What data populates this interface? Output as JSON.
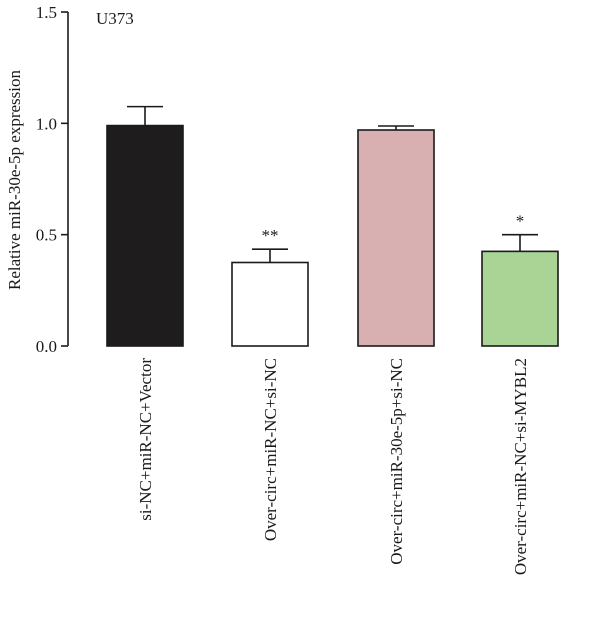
{
  "chart_data": {
    "type": "bar",
    "panel_label": "U373",
    "title": "",
    "xlabel": "",
    "ylabel": "Relative miR-30e-5p expression",
    "ylim": [
      0,
      1.5
    ],
    "yticks": [
      "0.0",
      "0.5",
      "1.0",
      "1.5"
    ],
    "grid": false,
    "categories": [
      "si-NC+miR-NC+Vector",
      "Over-circ+miR-NC+si-NC",
      "Over-circ+miR-30e-5p+si-NC",
      "Over-circ+miR-NC+si-MYBL2"
    ],
    "values": [
      0.99,
      0.375,
      0.97,
      0.425
    ],
    "errors": [
      0.085,
      0.06,
      0.018,
      0.075
    ],
    "significance": [
      "",
      "**",
      "",
      "*"
    ],
    "colors": [
      "#1f1c1d",
      "#ffffff",
      "#d9b0b1",
      "#a9d496"
    ]
  }
}
